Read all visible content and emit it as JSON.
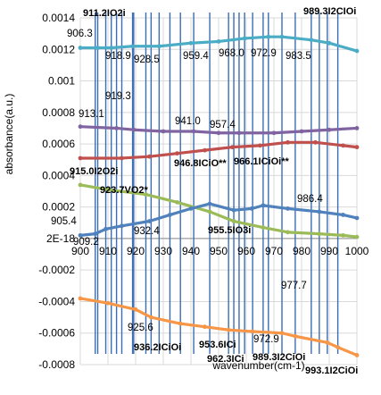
{
  "chart_data": {
    "type": "line",
    "title": "",
    "xlabel": "wavenumber(cm-1)",
    "ylabel": "absorbance(a.u.)",
    "xlim": [
      900,
      1000
    ],
    "ylim": [
      -0.0008,
      0.0014
    ],
    "x_tick_labels": [
      "900",
      "910",
      "920",
      "930",
      "940",
      "950",
      "960",
      "970",
      "980",
      "990",
      "1000"
    ],
    "y_tick_labels": [
      "-0.0008",
      "-0.0006",
      "-0.0004",
      "-0.0002",
      "2E-18",
      "0.0002",
      "0.0004",
      "0.0006",
      "0.0008",
      "0.001",
      "0.0012",
      "0.0014"
    ],
    "y_tick_values": [
      -0.0008,
      -0.0006,
      -0.0004,
      -0.0002,
      0,
      0.0002,
      0.0004,
      0.0006,
      0.0008,
      0.001,
      0.0012,
      0.0014
    ],
    "grid": true,
    "legend": "none",
    "series": [
      {
        "color": "#4bacc6",
        "x": [
          900,
          906.3,
          911.2,
          918.9,
          928.5,
          940,
          950,
          959.4,
          968.0,
          972.9,
          983.5,
          990,
          1000
        ],
        "y": [
          0.00121,
          0.00121,
          0.00121,
          0.00122,
          0.00122,
          0.00124,
          0.00125,
          0.00127,
          0.00128,
          0.00128,
          0.00126,
          0.00124,
          0.00119
        ]
      },
      {
        "color": "#8064a2",
        "x": [
          900,
          913.1,
          919.3,
          930,
          941.0,
          950,
          957.4,
          970,
          980,
          990,
          1000
        ],
        "y": [
          0.00071,
          0.0007,
          0.00069,
          0.00068,
          0.00068,
          0.00067,
          0.00067,
          0.00067,
          0.00068,
          0.00069,
          0.0007
        ]
      },
      {
        "color": "#c0504d",
        "x": [
          900,
          915.0,
          925,
          935,
          945,
          955,
          965,
          975,
          985,
          995,
          1000
        ],
        "y": [
          0.00051,
          0.00051,
          0.00052,
          0.00054,
          0.00056,
          0.00058,
          0.00059,
          0.00061,
          0.00061,
          0.00059,
          0.00058
        ]
      },
      {
        "color": "#9bbb59",
        "x": [
          900,
          910,
          923.7,
          935,
          946.8,
          955.5,
          966.1,
          975,
          986.4,
          995,
          1000
        ],
        "y": [
          0.00034,
          0.00031,
          0.00028,
          0.00023,
          0.00017,
          0.00011,
          7e-05,
          4e-05,
          3e-05,
          2e-05,
          1e-05
        ]
      },
      {
        "color": "#4f81bd",
        "x": [
          900,
          905.4,
          909.2,
          915,
          925,
          932.4,
          940,
          946.8,
          955.5,
          962,
          966.1,
          975,
          986.4,
          995,
          1000
        ],
        "y": [
          2e-05,
          3e-05,
          6e-05,
          8e-05,
          0.00011,
          0.00015,
          0.00019,
          0.00022,
          0.00018,
          0.00019,
          0.00021,
          0.00019,
          0.00017,
          0.00015,
          0.00013
        ]
      },
      {
        "color": "#f79646",
        "x": [
          900,
          910,
          920,
          925.6,
          936.2,
          945,
          953.6,
          962.3,
          972.9,
          977.7,
          989.3,
          993.1,
          1000
        ],
        "y": [
          -0.00038,
          -0.00041,
          -0.00045,
          -0.0005,
          -0.00054,
          -0.00056,
          -0.00058,
          -0.00059,
          -0.0006,
          -0.00062,
          -0.00066,
          -0.00069,
          -0.00074
        ]
      }
    ],
    "annotation_lines": [
      906.3,
      911.2,
      918.9,
      928.5,
      959.4,
      968.0,
      972.9,
      983.5,
      989.3,
      913.1,
      919.3,
      941.0,
      957.4,
      915.0,
      923.7,
      946.8,
      966.1,
      986.4,
      905.4,
      909.2,
      932.4,
      955.5,
      925.6,
      936.2,
      953.6,
      962.3,
      977.7,
      993.1
    ],
    "annotations": [
      {
        "text": "906.3",
        "bold": false
      },
      {
        "text": "911.2IO2i",
        "bold": true
      },
      {
        "text": "918.9",
        "bold": false
      },
      {
        "text": "928.5",
        "bold": false
      },
      {
        "text": "959.4",
        "bold": false
      },
      {
        "text": "968.0",
        "bold": false
      },
      {
        "text": "972.9",
        "bold": false
      },
      {
        "text": "983.5",
        "bold": false
      },
      {
        "text": "989.3I2CIOi",
        "bold": true
      },
      {
        "text": "919.3",
        "bold": false
      },
      {
        "text": "913.1",
        "bold": false
      },
      {
        "text": "941.0",
        "bold": false
      },
      {
        "text": "957.4",
        "bold": false
      },
      {
        "text": "915.0I2O2i",
        "bold": true
      },
      {
        "text": "946.8ICiO**",
        "bold": true
      },
      {
        "text": "966.1ICiOi**",
        "bold": true
      },
      {
        "text": "923.7VO2*",
        "bold": true
      },
      {
        "text": "986.4",
        "bold": false
      },
      {
        "text": "905.4",
        "bold": false
      },
      {
        "text": "932.4",
        "bold": false
      },
      {
        "text": "955.5IO3i",
        "bold": true
      },
      {
        "text": "909.2",
        "bold": false
      },
      {
        "text": "977.7",
        "bold": false
      },
      {
        "text": "925.6",
        "bold": false
      },
      {
        "text": "972.9",
        "bold": false
      },
      {
        "text": "936.2ICiOi",
        "bold": true
      },
      {
        "text": "953.6ICi",
        "bold": true
      },
      {
        "text": "962.3ICi",
        "bold": true
      },
      {
        "text": "989.3I2CiOi",
        "bold": true
      },
      {
        "text": "993.1I2CiOi",
        "bold": true
      }
    ]
  }
}
